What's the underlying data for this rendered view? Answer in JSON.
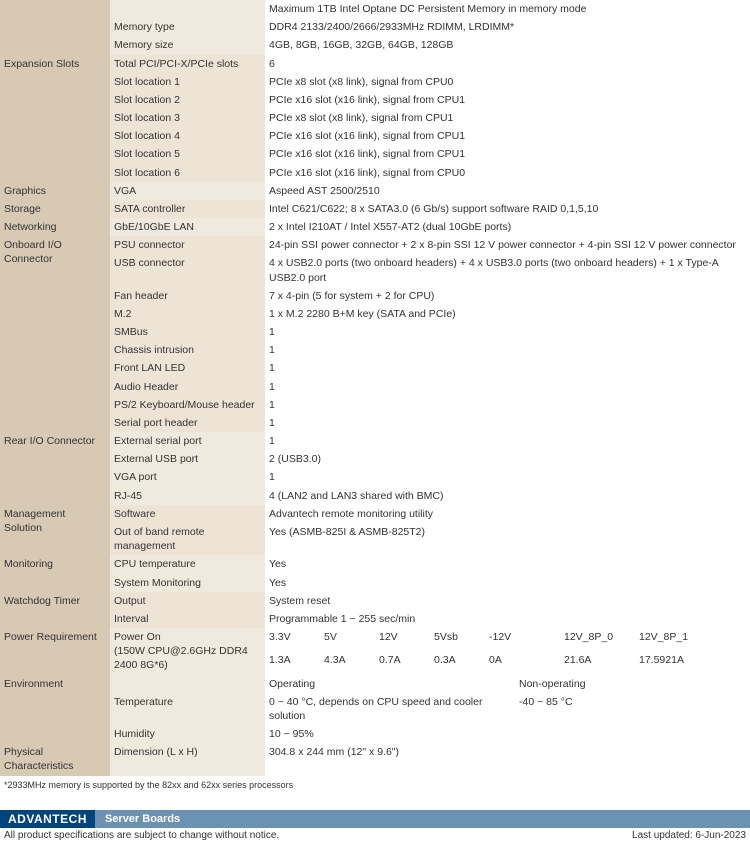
{
  "specs": [
    {
      "category": "",
      "rows": [
        {
          "sub": "",
          "val": "Maximum 1TB Intel Optane DC Persistent Memory in memory mode"
        },
        {
          "sub": "Memory type",
          "val": "DDR4 2133/2400/2666/2933MHz RDIMM, LRDIMM*"
        },
        {
          "sub": "Memory size",
          "val": "4GB, 8GB, 16GB, 32GB, 64GB, 128GB"
        }
      ]
    },
    {
      "category": "Expansion Slots",
      "rows": [
        {
          "sub": "Total PCI/PCI-X/PCIe slots",
          "val": "6"
        },
        {
          "sub": "Slot location 1",
          "val": "PCIe x8 slot (x8 link), signal from CPU0"
        },
        {
          "sub": "Slot location 2",
          "val": "PCIe x16 slot (x16 link), signal from CPU1"
        },
        {
          "sub": "Slot location 3",
          "val": "PCIe x8 slot (x8 link), signal from CPU1"
        },
        {
          "sub": "Slot location 4",
          "val": "PCIe x16 slot (x16 link), signal from CPU1"
        },
        {
          "sub": "Slot location 5",
          "val": "PCIe x16 slot (x16 link), signal from CPU1"
        },
        {
          "sub": "Slot location 6",
          "val": "PCIe x16 slot (x16 link), signal from CPU0"
        }
      ]
    },
    {
      "category": "Graphics",
      "rows": [
        {
          "sub": "VGA",
          "val": "Aspeed AST 2500/2510"
        }
      ]
    },
    {
      "category": "Storage",
      "rows": [
        {
          "sub": "SATA controller",
          "val": "Intel C621/C622; 8 x SATA3.0 (6 Gb/s) support software RAID 0,1,5,10"
        }
      ]
    },
    {
      "category": "Networking",
      "rows": [
        {
          "sub": "GbE/10GbE LAN",
          "val": "2 x Intel I210AT / Intel X557-AT2 (dual 10GbE ports)"
        }
      ]
    },
    {
      "category": "Onboard I/O Connector",
      "rows": [
        {
          "sub": "PSU connector",
          "val": "24-pin SSI power connector + 2 x 8-pin SSI 12 V power connector + 4-pin SSI 12 V power connector"
        },
        {
          "sub": "USB connector",
          "val": "4 x USB2.0 ports (two onboard headers) + 4 x USB3.0 ports (two onboard headers) + 1 x Type-A USB2.0 port"
        },
        {
          "sub": "Fan header",
          "val": "7 x 4-pin (5 for system + 2 for CPU)"
        },
        {
          "sub": "M.2",
          "val": "1 x M.2 2280 B+M key (SATA and PCIe)"
        },
        {
          "sub": "SMBus",
          "val": "1"
        },
        {
          "sub": "Chassis intrusion",
          "val": "1"
        },
        {
          "sub": "Front LAN LED",
          "val": "1"
        },
        {
          "sub": "Audio Header",
          "val": "1"
        },
        {
          "sub": "PS/2 Keyboard/Mouse header",
          "val": "1"
        },
        {
          "sub": "Serial port header",
          "val": "1"
        }
      ]
    },
    {
      "category": "Rear I/O Connector",
      "rows": [
        {
          "sub": "External serial port",
          "val": "1"
        },
        {
          "sub": "External USB port",
          "val": "2 (USB3.0)"
        },
        {
          "sub": "VGA port",
          "val": "1"
        },
        {
          "sub": "RJ-45",
          "val": "4 (LAN2 and LAN3 shared with BMC)"
        }
      ]
    },
    {
      "category": "Management Solution",
      "rows": [
        {
          "sub": "Software",
          "val": "Advantech remote monitoring utility"
        },
        {
          "sub": "Out of band remote management",
          "val": "Yes (ASMB-825I & ASMB-825T2)"
        }
      ]
    },
    {
      "category": "Monitoring",
      "rows": [
        {
          "sub": "CPU temperature",
          "val": "Yes"
        },
        {
          "sub": "System Monitoring",
          "val": "Yes"
        }
      ]
    },
    {
      "category": "Watchdog Timer",
      "rows": [
        {
          "sub": "Output",
          "val": "System reset"
        },
        {
          "sub": "Interval",
          "val": "Programmable 1 ~ 255 sec/min"
        }
      ]
    },
    {
      "category": "Physical Characteristics",
      "rows": [
        {
          "sub": "Dimension (L x H)",
          "val": "304.8 x 244 mm (12\" x 9.6\")"
        }
      ]
    }
  ],
  "power": {
    "category": "Power Requirement",
    "sub": "Power On\n(150W CPU@2.6GHz DDR4 2400 8G*6)",
    "headers": [
      "3.3V",
      "5V",
      "12V",
      "5Vsb",
      "-12V",
      "12V_8P_0",
      "12V_8P_1"
    ],
    "values": [
      "1.3A",
      "4.3A",
      "0.7A",
      "0.3A",
      "0A",
      "21.6A",
      "17.5921A"
    ]
  },
  "env": {
    "category": "Environment",
    "headers": [
      "Operating",
      "Non-operating"
    ],
    "rows": [
      {
        "sub": "Temperature",
        "op": "0 ~ 40 °C, depends on CPU speed and cooler solution",
        "nop": "-40 ~ 85 °C"
      },
      {
        "sub": "Humidity",
        "op": "10 ~ 95%",
        "nop": ""
      }
    ]
  },
  "footnote": "*2933MHz memory is supported by the 82xx and 62xx series processors",
  "brand": {
    "name": "ADVANTECH",
    "section": "Server Boards"
  },
  "bottom": {
    "disclaimer": "All product specifications are subject to change without notice.",
    "updated": "Last updated: 6-Jun-2023"
  }
}
